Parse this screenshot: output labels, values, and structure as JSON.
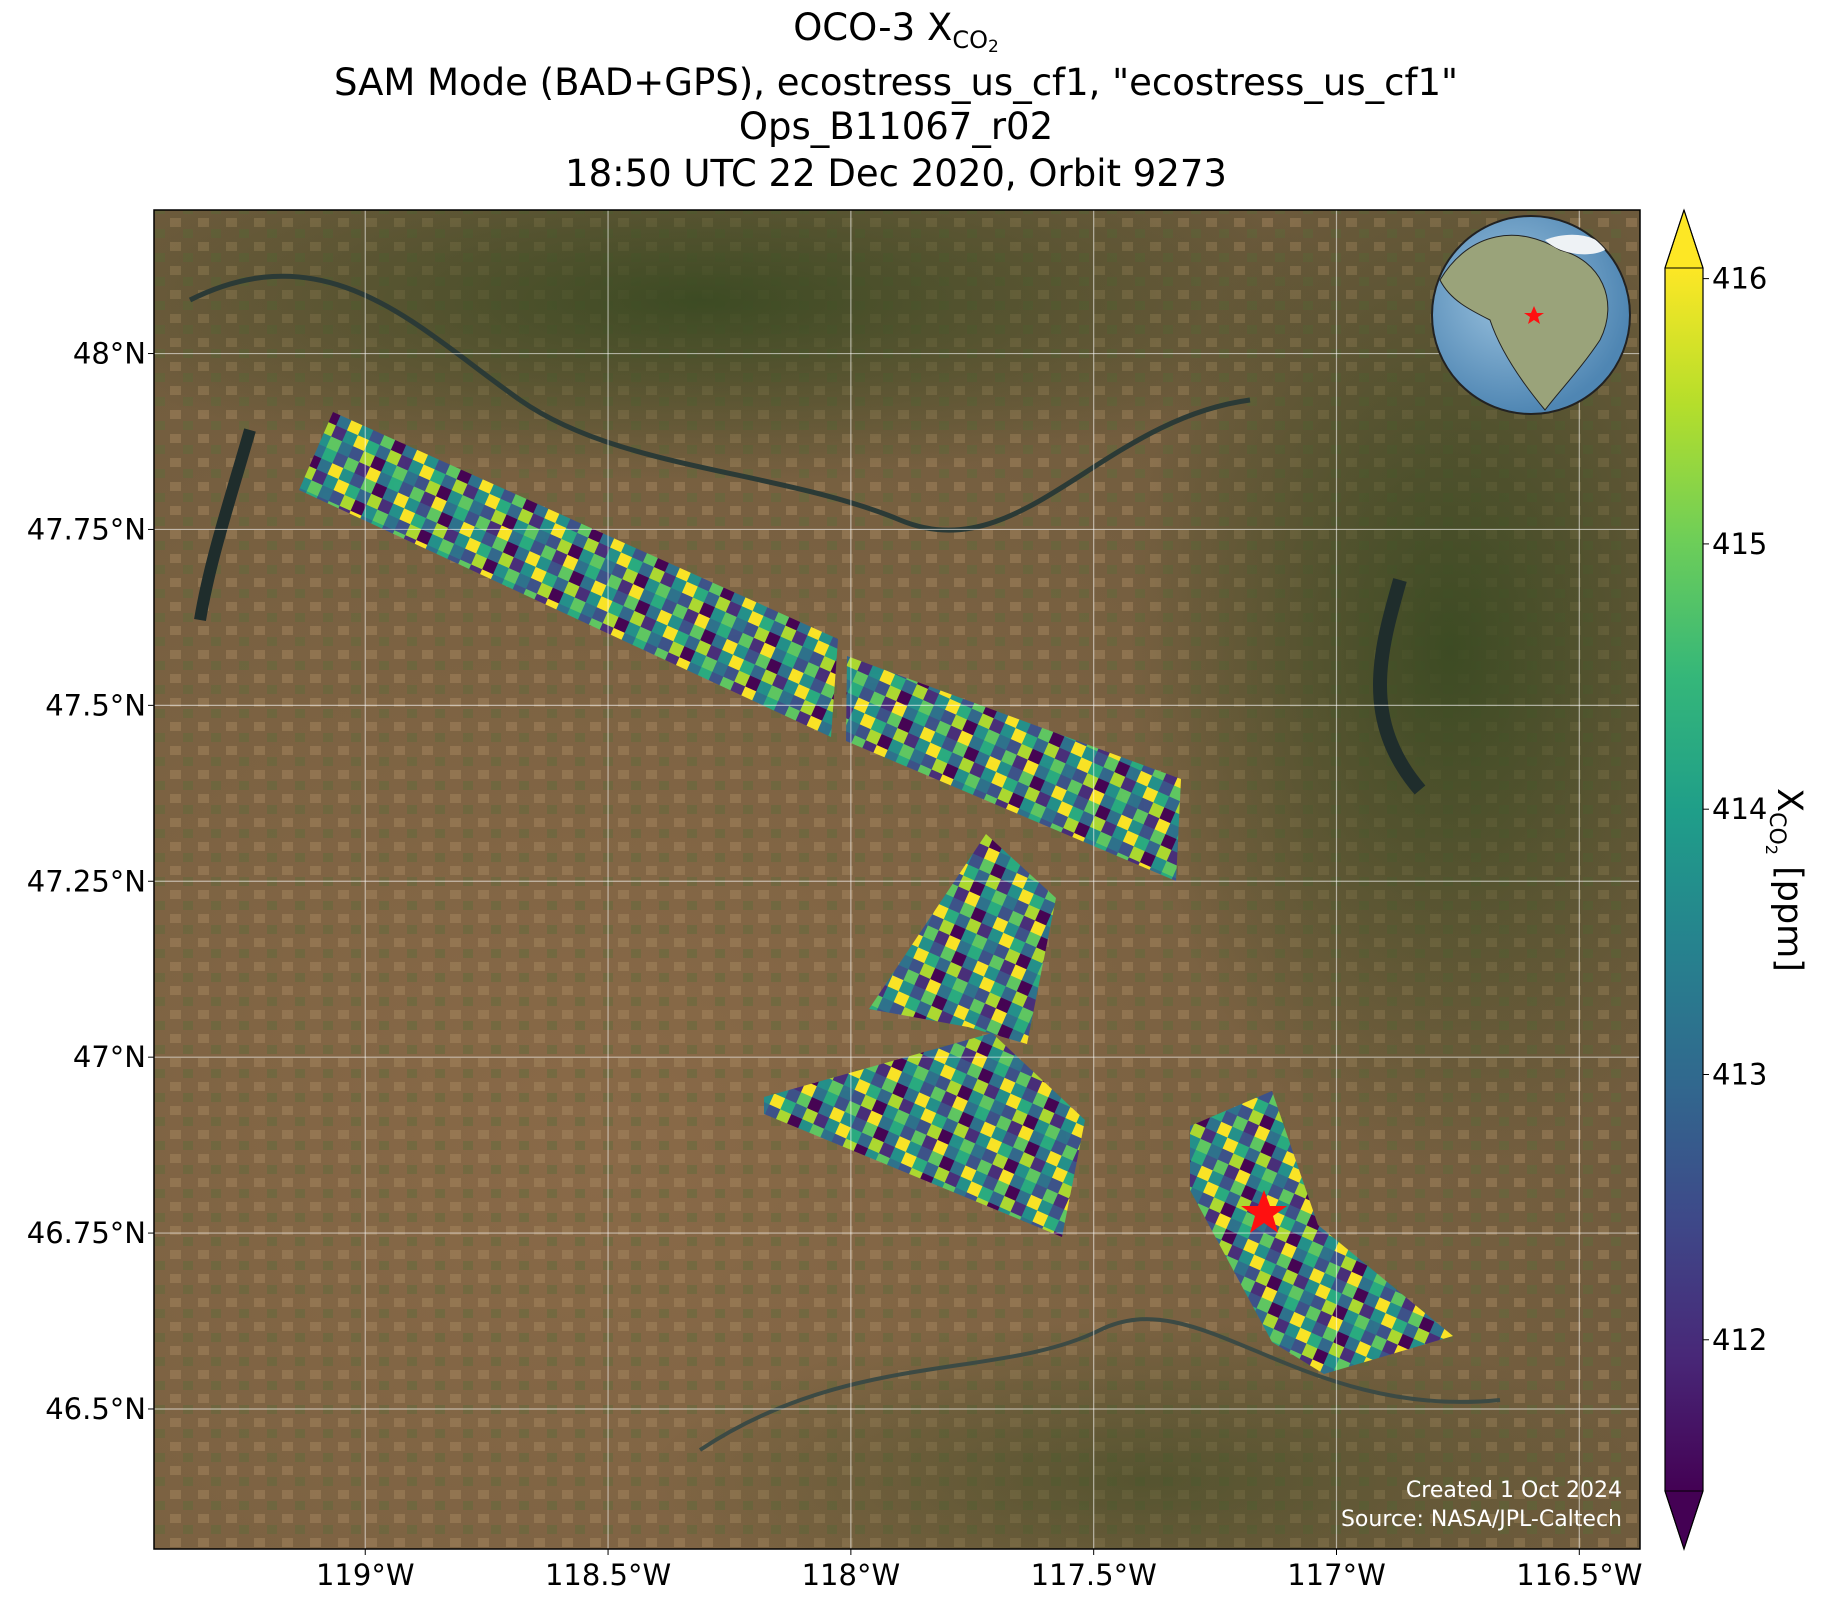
{
  "chart_data": {
    "type": "map",
    "title": [
      "OCO-3 X",
      "CO",
      "2"
    ],
    "subtitle": [
      "SAM Mode (BAD+GPS), ecostress_us_cf1, \"ecostress_us_cf1\"",
      "Ops_B11067_r02",
      "18:50 UTC 22 Dec 2020, Orbit 9273"
    ],
    "xlim": [
      -119.435,
      -116.375
    ],
    "ylim": [
      46.301,
      48.204
    ],
    "xticks": [
      {
        "value": -119,
        "label": "119°W"
      },
      {
        "value": -118.5,
        "label": "118.5°W"
      },
      {
        "value": -118,
        "label": "118°W"
      },
      {
        "value": -117.5,
        "label": "117.5°W"
      },
      {
        "value": -117,
        "label": "117°W"
      },
      {
        "value": -116.5,
        "label": "116.5°W"
      }
    ],
    "yticks": [
      {
        "value": 46.5,
        "label": "46.5°N"
      },
      {
        "value": 46.75,
        "label": "46.75°N"
      },
      {
        "value": 47,
        "label": "47°N"
      },
      {
        "value": 47.25,
        "label": "47.25°N"
      },
      {
        "value": 47.5,
        "label": "47.5°N"
      },
      {
        "value": 47.75,
        "label": "47.75°N"
      },
      {
        "value": 48,
        "label": "48°N"
      }
    ],
    "grid": true,
    "colorbar": {
      "label": [
        "X",
        "CO",
        "2",
        " [ppm]"
      ],
      "lim": [
        411.43,
        416.04
      ],
      "ticks": [
        412,
        413,
        414,
        415,
        416
      ],
      "colormap": "viridis",
      "extend": "both"
    },
    "credits": [
      "Created 1 Oct 2024",
      "Source: NASA/JPL-Caltech"
    ]
  }
}
